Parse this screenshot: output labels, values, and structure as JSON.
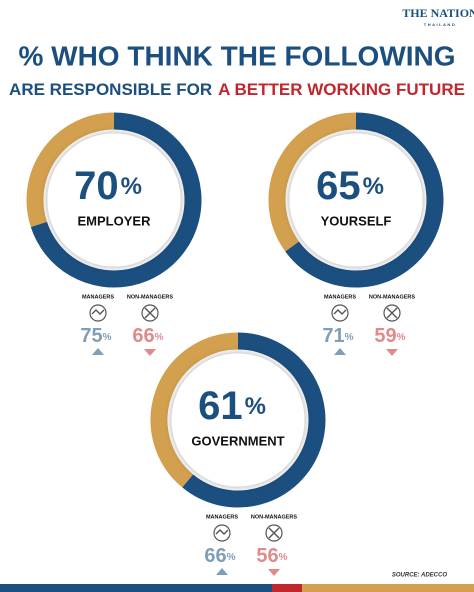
{
  "header": {
    "brand": "THE NATION",
    "brand_sub": "THAILAND",
    "title": "% WHO THINK THE FOLLOWING",
    "subtitle_1": "ARE RESPONSIBLE FOR",
    "subtitle_2": "A BETTER WORKING FUTURE"
  },
  "chart_data": [
    {
      "type": "donut",
      "label": "EMPLOYER",
      "values": [
        70,
        30
      ],
      "colors": [
        "#1b4f7f",
        "#d3a04f"
      ],
      "unit": "%",
      "breakdown": [
        {
          "name": "MANAGERS",
          "value": 75,
          "unit": "%",
          "color": "#7f9fb8",
          "trend": "up"
        },
        {
          "name": "NON-MANAGERS",
          "value": 66,
          "unit": "%",
          "color": "#e08a8c",
          "trend": "down"
        }
      ]
    },
    {
      "type": "donut",
      "label": "YOURSELF",
      "values": [
        65,
        35
      ],
      "colors": [
        "#1b4f7f",
        "#d3a04f"
      ],
      "unit": "%",
      "breakdown": [
        {
          "name": "MANAGERS",
          "value": 71,
          "unit": "%",
          "color": "#7f9fb8",
          "trend": "up"
        },
        {
          "name": "NON-MANAGERS",
          "value": 59,
          "unit": "%",
          "color": "#e08a8c",
          "trend": "down"
        }
      ]
    },
    {
      "type": "donut",
      "label": "GOVERNMENT",
      "values": [
        61,
        39
      ],
      "colors": [
        "#1b4f7f",
        "#d3a04f"
      ],
      "unit": "%",
      "breakdown": [
        {
          "name": "MANAGERS",
          "value": 66,
          "unit": "%",
          "color": "#7f9fb8",
          "trend": "up"
        },
        {
          "name": "NON-MANAGERS",
          "value": 56,
          "unit": "%",
          "color": "#e08a8c",
          "trend": "down"
        }
      ]
    }
  ],
  "source": "SOURCE: ADECCO"
}
